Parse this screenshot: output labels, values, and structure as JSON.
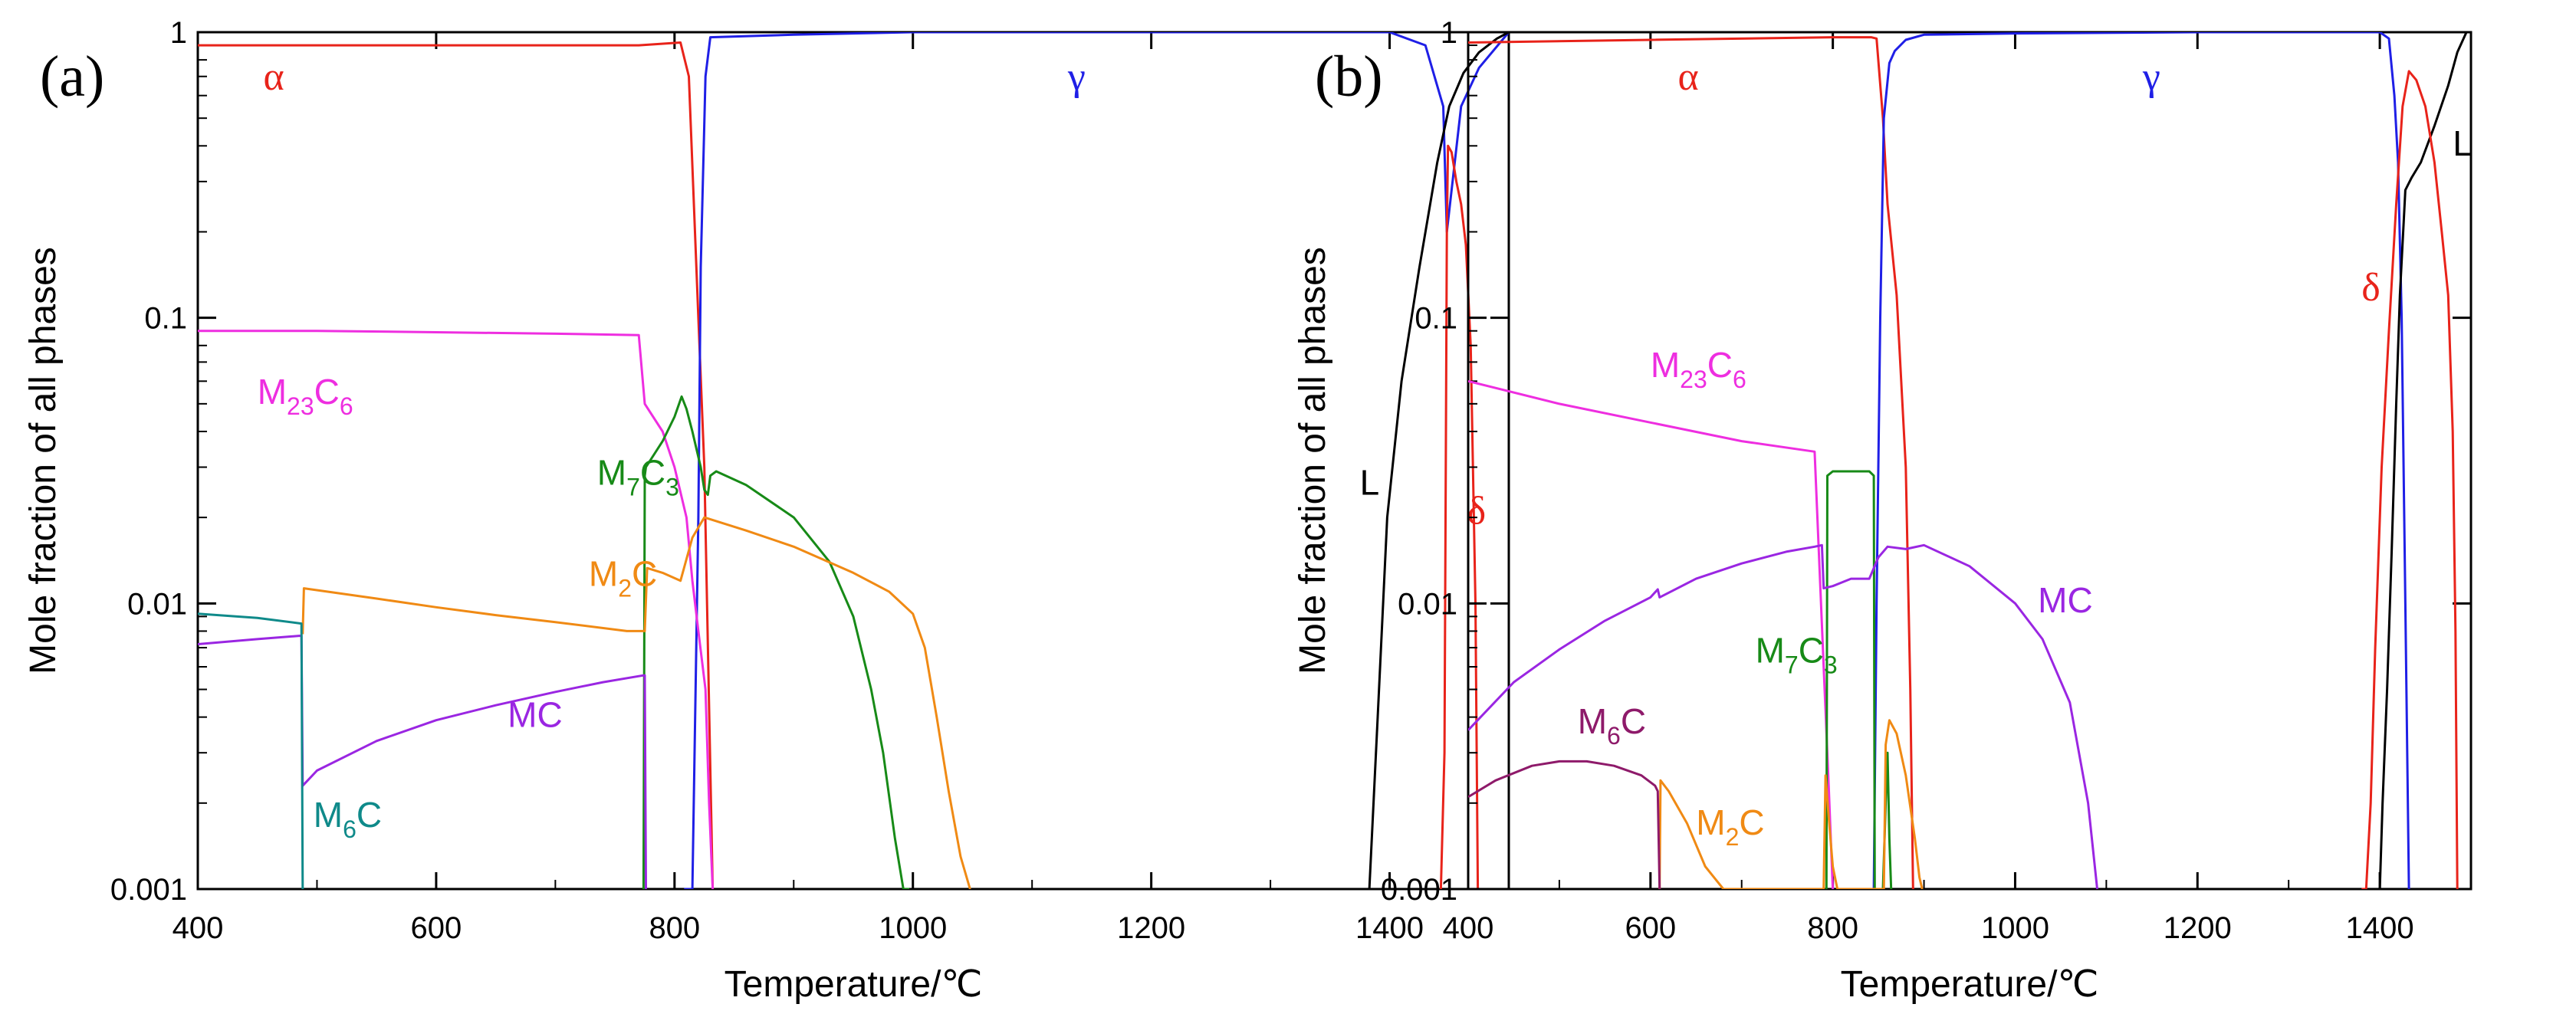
{
  "colors": {
    "alpha": "#e8231a",
    "gamma": "#1f1fe6",
    "liquid": "#000000",
    "delta": "#e8231a",
    "M23C6": "#ee2ee0",
    "M7C3": "#178a17",
    "M2C": "#f08a14",
    "MC": "#9a26e2",
    "M6C_a": "#0f8a8a",
    "M6C_b": "#8e1a6a"
  },
  "chart_data": [
    {
      "type": "line",
      "panel": "(a)",
      "xlabel": "Temperature/℃",
      "ylabel": "Mole fraction of all phases",
      "xlim": [
        400,
        1500
      ],
      "ylim": [
        0.001,
        1
      ],
      "yscale": "log",
      "xticks": [
        "400",
        "600",
        "800",
        "1000",
        "1200",
        "1400"
      ],
      "yticks": [
        "0.001",
        "0.01",
        "0.1",
        "1"
      ],
      "labels": [
        {
          "base": "α",
          "sub": "",
          "color": "alpha",
          "greek": true,
          "x": 455,
          "y": 0.63
        },
        {
          "base": "γ",
          "sub": "",
          "color": "gamma",
          "greek": true,
          "x": 1130,
          "y": 0.63
        },
        {
          "base": "M",
          "sub": "23",
          "base2": "C",
          "sub2": "6",
          "color": "M23C6",
          "x": 450,
          "y": 0.05
        },
        {
          "base": "M",
          "sub": "7",
          "base2": "C",
          "sub2": "3",
          "color": "M7C3",
          "x": 735,
          "y": 0.026
        },
        {
          "base": "M",
          "sub": "2",
          "base2": "C",
          "sub2": "",
          "color": "M2C",
          "x": 728,
          "y": 0.0115
        },
        {
          "base": "MC",
          "sub": "",
          "color": "MC",
          "x": 660,
          "y": 0.0037
        },
        {
          "base": "M",
          "sub": "6",
          "base2": "C",
          "sub2": "",
          "color": "M6C_a",
          "x": 497,
          "y": 0.00165
        },
        {
          "base": "L",
          "sub": "",
          "color": "liquid",
          "x": 1375,
          "y": 0.024
        },
        {
          "base": "δ",
          "sub": "",
          "color": "delta",
          "greek": true,
          "x": 1465,
          "y": 0.019
        }
      ],
      "series": [
        {
          "name": "α",
          "color": "alpha",
          "x": [
            400,
            770,
            805,
            812,
            820,
            825,
            832
          ],
          "y": [
            0.9,
            0.9,
            0.92,
            0.7,
            0.1,
            0.03,
            0.001
          ]
        },
        {
          "name": "γ",
          "color": "gamma",
          "x": [
            808,
            815,
            820,
            822,
            826,
            830,
            900,
            1000,
            1400,
            1430,
            1445,
            1448,
            1460,
            1475,
            1500
          ],
          "y": [
            0.001,
            0.001,
            0.02,
            0.15,
            0.7,
            0.96,
            0.98,
            1.0,
            1.0,
            0.9,
            0.55,
            0.2,
            0.55,
            0.75,
            1.0
          ]
        },
        {
          "name": "L",
          "color": "liquid",
          "x": [
            1383,
            1390,
            1398,
            1410,
            1425,
            1440,
            1450,
            1462,
            1475,
            1490,
            1500
          ],
          "y": [
            0.001,
            0.004,
            0.02,
            0.06,
            0.15,
            0.35,
            0.55,
            0.72,
            0.85,
            0.95,
            1.0
          ]
        },
        {
          "name": "δ",
          "color": "delta",
          "x": [
            1443,
            1446,
            1448,
            1449,
            1452,
            1456,
            1460,
            1464,
            1468,
            1472,
            1474
          ],
          "y": [
            0.001,
            0.003,
            0.2,
            0.4,
            0.38,
            0.3,
            0.25,
            0.18,
            0.08,
            0.01,
            0.001
          ]
        },
        {
          "name": "M23C6",
          "color": "M23C6",
          "x": [
            400,
            500,
            600,
            700,
            770,
            775,
            790,
            800,
            810,
            815,
            820,
            826,
            829,
            832
          ],
          "y": [
            0.09,
            0.09,
            0.089,
            0.088,
            0.087,
            0.05,
            0.04,
            0.03,
            0.02,
            0.012,
            0.008,
            0.005,
            0.002,
            0.001
          ]
        },
        {
          "name": "M7C3",
          "color": "M7C3",
          "x": [
            774,
            775,
            776,
            790,
            800,
            806,
            810,
            815,
            822,
            825,
            828,
            830,
            835,
            860,
            900,
            930,
            950,
            965,
            975,
            985,
            992,
            997
          ],
          "y": [
            0.001,
            0.028,
            0.03,
            0.037,
            0.045,
            0.053,
            0.048,
            0.04,
            0.03,
            0.025,
            0.024,
            0.028,
            0.029,
            0.026,
            0.02,
            0.014,
            0.009,
            0.005,
            0.003,
            0.0015,
            0.001,
            0.001
          ]
        },
        {
          "name": "M2C",
          "color": "M2C",
          "x": [
            488,
            489,
            550,
            600,
            650,
            700,
            760,
            775,
            777,
            790,
            805,
            815,
            825,
            860,
            900,
            950,
            980,
            1000,
            1010,
            1020,
            1030,
            1040,
            1048
          ],
          "y": [
            0.0078,
            0.0113,
            0.0104,
            0.0097,
            0.0091,
            0.0086,
            0.008,
            0.008,
            0.0133,
            0.0128,
            0.012,
            0.017,
            0.02,
            0.018,
            0.0158,
            0.0128,
            0.011,
            0.0092,
            0.007,
            0.004,
            0.0022,
            0.0013,
            0.001
          ]
        },
        {
          "name": "MC",
          "color": "MC",
          "x": [
            400,
            450,
            485,
            487,
            488,
            500,
            550,
            600,
            650,
            700,
            740,
            774,
            775,
            776
          ],
          "y": [
            0.0072,
            0.0075,
            0.0077,
            0.0077,
            0.0023,
            0.0026,
            0.0033,
            0.0039,
            0.0044,
            0.0049,
            0.0053,
            0.0056,
            0.0056,
            0.001
          ]
        },
        {
          "name": "M6C",
          "color": "M6C_a",
          "x": [
            400,
            450,
            487,
            488
          ],
          "y": [
            0.0092,
            0.0089,
            0.0085,
            0.001
          ]
        }
      ]
    },
    {
      "type": "line",
      "panel": "(b)",
      "xlabel": "Temperature/℃",
      "ylabel": "Mole fraction of all phases",
      "xlim": [
        400,
        1500
      ],
      "ylim": [
        0.001,
        1
      ],
      "yscale": "log",
      "xticks": [
        "400",
        "600",
        "800",
        "1000",
        "1200",
        "1400"
      ],
      "yticks": [
        "0.001",
        "0.01",
        "0.1",
        "1"
      ],
      "labels": [
        {
          "base": "α",
          "sub": "",
          "color": "alpha",
          "greek": true,
          "x": 630,
          "y": 0.63
        },
        {
          "base": "γ",
          "sub": "",
          "color": "gamma",
          "greek": true,
          "x": 1140,
          "y": 0.63
        },
        {
          "base": "L",
          "sub": "",
          "color": "liquid",
          "x": 1480,
          "y": 0.37
        },
        {
          "base": "δ",
          "sub": "",
          "color": "delta",
          "greek": true,
          "x": 1380,
          "y": 0.115
        },
        {
          "base": "M",
          "sub": "23",
          "base2": "C",
          "sub2": "6",
          "color": "M23C6",
          "x": 600,
          "y": 0.062
        },
        {
          "base": "MC",
          "sub": "",
          "color": "MC",
          "x": 1025,
          "y": 0.0093
        },
        {
          "base": "M",
          "sub": "7",
          "base2": "C",
          "sub2": "3",
          "color": "M7C3",
          "x": 715,
          "y": 0.0062
        },
        {
          "base": "M",
          "sub": "6",
          "base2": "C",
          "sub2": "",
          "color": "M6C_b",
          "x": 520,
          "y": 0.0035
        },
        {
          "base": "M",
          "sub": "2",
          "base2": "C",
          "sub2": "",
          "color": "M2C",
          "x": 650,
          "y": 0.00155
        }
      ],
      "series": [
        {
          "name": "α",
          "color": "alpha",
          "x": [
            400,
            600,
            800,
            842,
            848,
            855,
            860,
            870,
            880,
            885,
            888
          ],
          "y": [
            0.92,
            0.94,
            0.96,
            0.96,
            0.95,
            0.5,
            0.25,
            0.12,
            0.03,
            0.005,
            0.001
          ]
        },
        {
          "name": "γ",
          "color": "gamma",
          "x": [
            845,
            848,
            852,
            856,
            862,
            868,
            880,
            900,
            1000,
            1200,
            1400,
            1410,
            1416,
            1420,
            1424,
            1428,
            1432
          ],
          "y": [
            0.001,
            0.01,
            0.1,
            0.5,
            0.78,
            0.86,
            0.94,
            0.98,
            0.99,
            1.0,
            1.0,
            0.95,
            0.6,
            0.35,
            0.1,
            0.01,
            0.001
          ]
        },
        {
          "name": "L",
          "color": "liquid",
          "x": [
            1400,
            1403,
            1408,
            1413,
            1418,
            1422,
            1428,
            1435,
            1445,
            1460,
            1475,
            1485,
            1495
          ],
          "y": [
            0.001,
            0.002,
            0.005,
            0.015,
            0.05,
            0.12,
            0.28,
            0.31,
            0.35,
            0.47,
            0.65,
            0.85,
            1.0
          ]
        },
        {
          "name": "δ",
          "color": "delta",
          "x": [
            1380,
            1385,
            1390,
            1395,
            1402,
            1410,
            1418,
            1425,
            1432,
            1440,
            1450,
            1460,
            1468,
            1475,
            1480,
            1483,
            1485
          ],
          "y": [
            0.001,
            0.001,
            0.002,
            0.007,
            0.03,
            0.09,
            0.25,
            0.55,
            0.73,
            0.68,
            0.55,
            0.35,
            0.2,
            0.12,
            0.04,
            0.008,
            0.001
          ]
        },
        {
          "name": "M23C6",
          "color": "M23C6",
          "x": [
            400,
            500,
            600,
            700,
            780,
            790,
            795,
            800
          ],
          "y": [
            0.06,
            0.05,
            0.043,
            0.037,
            0.034,
            0.006,
            0.0025,
            0.001
          ]
        },
        {
          "name": "M7C3",
          "color": "M7C3",
          "x": [
            793,
            794,
            800,
            820,
            840,
            845,
            846,
            855,
            858,
            860,
            862,
            864
          ],
          "y": [
            0.001,
            0.028,
            0.029,
            0.029,
            0.029,
            0.028,
            0.001,
            0.001,
            0.002,
            0.003,
            0.0015,
            0.001
          ]
        },
        {
          "name": "M2C",
          "color": "M2C",
          "x": [
            610,
            611,
            620,
            640,
            660,
            680,
            682,
            790,
            792,
            796,
            800,
            805,
            856,
            858,
            862,
            870,
            880,
            890,
            895,
            898
          ],
          "y": [
            0.001,
            0.0024,
            0.0022,
            0.0017,
            0.0012,
            0.001,
            0.001,
            0.001,
            0.0025,
            0.0017,
            0.0012,
            0.001,
            0.001,
            0.0032,
            0.0039,
            0.0035,
            0.0025,
            0.0015,
            0.0011,
            0.001
          ]
        },
        {
          "name": "MC",
          "color": "MC",
          "x": [
            400,
            450,
            500,
            550,
            600,
            608,
            610,
            650,
            700,
            750,
            780,
            788,
            790,
            800,
            820,
            840,
            850,
            860,
            880,
            900,
            950,
            1000,
            1030,
            1060,
            1080,
            1090
          ],
          "y": [
            0.0036,
            0.0053,
            0.0069,
            0.0087,
            0.0105,
            0.0112,
            0.0105,
            0.0122,
            0.0138,
            0.0152,
            0.0158,
            0.016,
            0.0113,
            0.0115,
            0.0122,
            0.0122,
            0.0145,
            0.0158,
            0.0155,
            0.016,
            0.0135,
            0.01,
            0.0075,
            0.0045,
            0.002,
            0.001
          ]
        },
        {
          "name": "M6C",
          "color": "M6C_b",
          "x": [
            400,
            430,
            470,
            500,
            530,
            560,
            590,
            605,
            608,
            610
          ],
          "y": [
            0.0021,
            0.0024,
            0.0027,
            0.0028,
            0.0028,
            0.0027,
            0.0025,
            0.0023,
            0.0022,
            0.001
          ]
        }
      ]
    }
  ]
}
